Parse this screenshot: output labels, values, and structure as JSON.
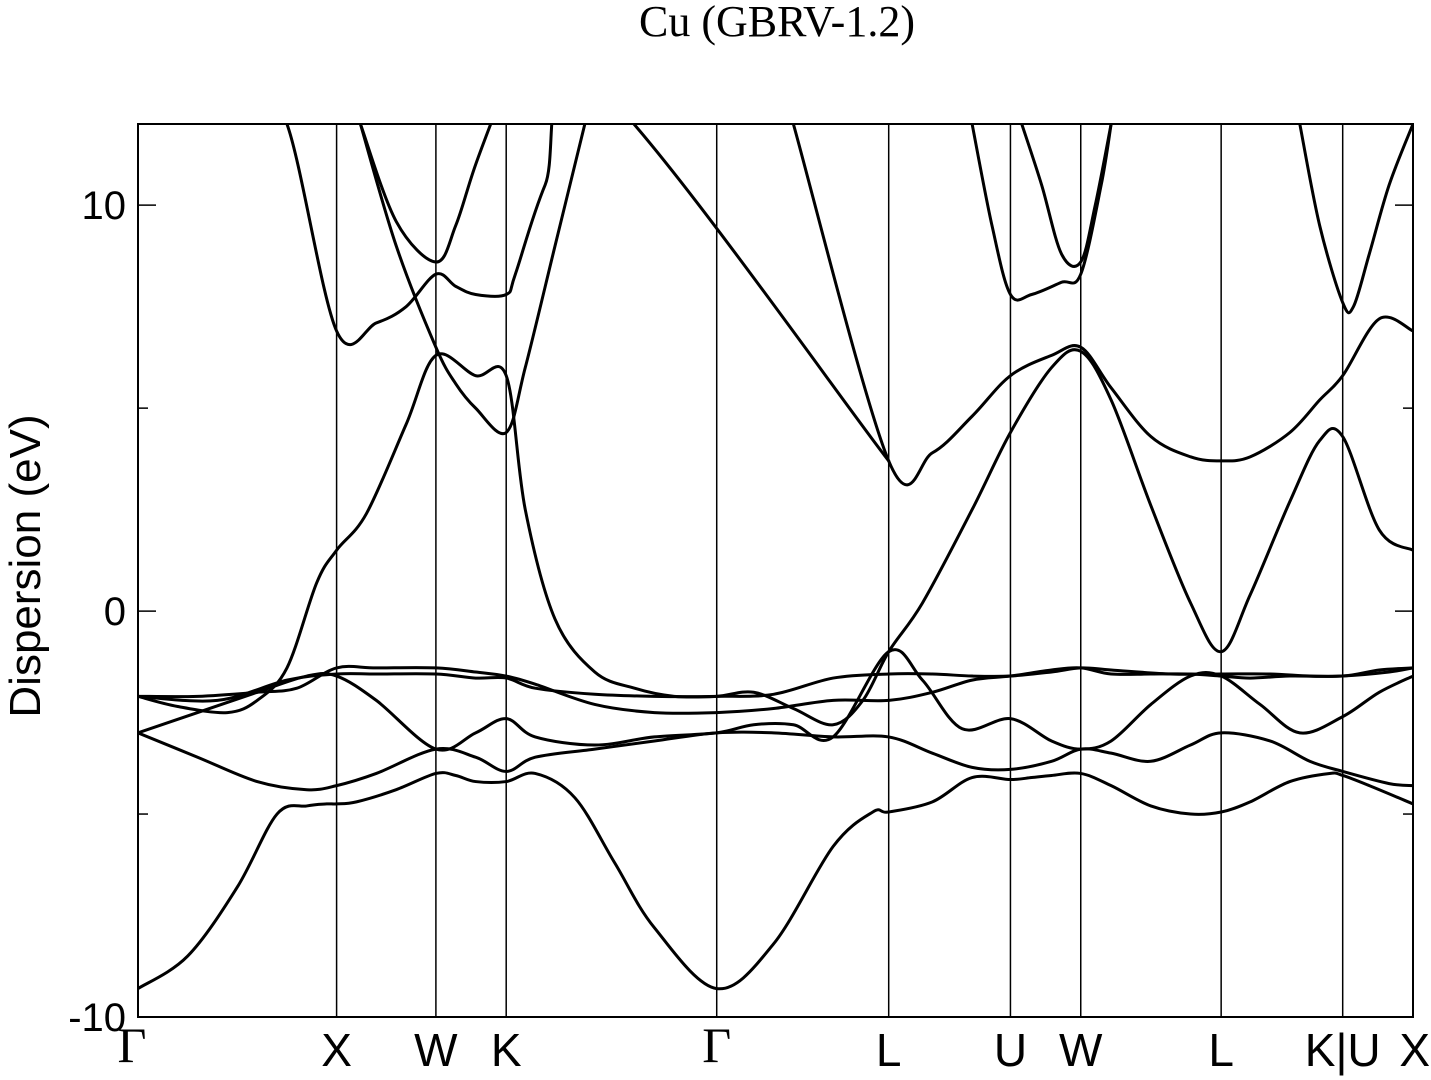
{
  "chart_data": {
    "type": "line",
    "title": "Cu (GBRV-1.2)",
    "xlabel": "",
    "ylabel": "Dispersion (eV)",
    "ylim": [
      -10,
      12
    ],
    "y_ticks": [
      {
        "value": -10,
        "label": "-10"
      },
      {
        "value": 0,
        "label": "0"
      },
      {
        "value": 10,
        "label": "10"
      }
    ],
    "y_minor_ticks": [
      -5,
      5
    ],
    "grid": false,
    "legend": "none",
    "k_path": [
      {
        "label": "Γ",
        "x": 0.0
      },
      {
        "label": "X",
        "x": 1.0
      },
      {
        "label": "W",
        "x": 1.5
      },
      {
        "label": "K",
        "x": 1.854
      },
      {
        "label": "Γ",
        "x": 2.914
      },
      {
        "label": "L",
        "x": 3.78
      },
      {
        "label": "U",
        "x": 4.393
      },
      {
        "label": "W",
        "x": 4.747
      },
      {
        "label": "L",
        "x": 5.454
      },
      {
        "label": "K|U",
        "x": 6.066
      },
      {
        "label": "X",
        "x": 6.42
      }
    ],
    "xlim": [
      0.0,
      6.42
    ],
    "series": [
      {
        "x": [
          0.0,
          0.25,
          0.5,
          0.7,
          0.85,
          0.95,
          1.0,
          1.1,
          1.3,
          1.5,
          1.6,
          1.7,
          1.854,
          2.0,
          2.2,
          2.4,
          2.6,
          2.914,
          3.2,
          3.5,
          3.7,
          3.78,
          4.0,
          4.2,
          4.393,
          4.5,
          4.6,
          4.747,
          4.9,
          5.1,
          5.3,
          5.454,
          5.6,
          5.8,
          6.0,
          6.066,
          6.2,
          6.42
        ],
        "y": [
          -9.3,
          -8.5,
          -6.8,
          -5.0,
          -4.8,
          -4.75,
          -4.75,
          -4.7,
          -4.4,
          -4.0,
          -4.05,
          -4.2,
          -4.2,
          -4.0,
          -4.6,
          -6.2,
          -7.8,
          -9.3,
          -8.2,
          -5.8,
          -4.95,
          -4.95,
          -4.7,
          -4.1,
          -4.15,
          -4.1,
          -4.05,
          -4.0,
          -4.3,
          -4.8,
          -5.0,
          -4.95,
          -4.7,
          -4.2,
          -4.0,
          -4.05,
          -4.3,
          -4.75
        ]
      },
      {
        "x": [
          0.0,
          0.3,
          0.6,
          0.85,
          1.0,
          1.2,
          1.5,
          1.7,
          1.854,
          2.0,
          2.3,
          2.6,
          2.914,
          3.2,
          3.5,
          3.78,
          4.0,
          4.2,
          4.393,
          4.6,
          4.747,
          4.9,
          5.1,
          5.3,
          5.454,
          5.7,
          5.9,
          6.066,
          6.3,
          6.42
        ],
        "y": [
          -3.0,
          -3.6,
          -4.2,
          -4.4,
          -4.3,
          -4.0,
          -3.4,
          -3.6,
          -3.95,
          -3.6,
          -3.4,
          -3.2,
          -3.0,
          -3.0,
          -3.1,
          -3.1,
          -3.5,
          -3.85,
          -3.9,
          -3.7,
          -3.4,
          -3.5,
          -3.7,
          -3.3,
          -3.0,
          -3.2,
          -3.7,
          -3.95,
          -4.25,
          -4.3
        ]
      },
      {
        "x": [
          0.0,
          0.3,
          0.6,
          0.85,
          1.0,
          1.2,
          1.5,
          1.7,
          1.854,
          2.0,
          2.3,
          2.6,
          2.914,
          3.1,
          3.3,
          3.5,
          3.78,
          3.95,
          4.15,
          4.393,
          4.6,
          4.747,
          4.9,
          5.1,
          5.3,
          5.454,
          5.65,
          5.85,
          6.066,
          6.25,
          6.42
        ],
        "y": [
          -3.0,
          -2.5,
          -2.0,
          -1.6,
          -1.6,
          -2.2,
          -3.4,
          -3.0,
          -2.65,
          -3.1,
          -3.3,
          -3.1,
          -3.0,
          -2.8,
          -2.8,
          -3.1,
          -1.0,
          -1.7,
          -2.9,
          -2.65,
          -3.2,
          -3.4,
          -3.2,
          -2.3,
          -1.6,
          -1.6,
          -2.3,
          -3.0,
          -2.6,
          -2.0,
          -1.6
        ]
      },
      {
        "x": [
          0.0,
          0.4,
          0.75,
          1.0,
          1.2,
          1.5,
          1.7,
          1.854,
          2.0,
          2.3,
          2.6,
          2.914,
          3.2,
          3.5,
          3.78,
          4.0,
          4.2,
          4.393,
          4.6,
          4.747,
          4.9,
          5.2,
          5.454,
          5.7,
          5.9,
          6.066,
          6.3,
          6.42
        ],
        "y": [
          -2.1,
          -2.2,
          -1.7,
          -1.55,
          -1.55,
          -1.55,
          -1.65,
          -1.65,
          -1.9,
          -2.05,
          -2.1,
          -2.1,
          -2.05,
          -1.65,
          -1.55,
          -1.55,
          -1.6,
          -1.6,
          -1.5,
          -1.4,
          -1.45,
          -1.55,
          -1.55,
          -1.55,
          -1.6,
          -1.6,
          -1.5,
          -1.4
        ]
      },
      {
        "x": [
          0.0,
          0.3,
          0.6,
          0.8,
          1.0,
          1.2,
          1.5,
          1.7,
          1.854,
          2.0,
          2.3,
          2.6,
          2.914,
          3.2,
          3.5,
          3.78,
          4.0,
          4.2,
          4.393,
          4.6,
          4.747,
          4.9,
          5.1,
          5.3,
          5.454,
          5.6,
          5.8,
          6.066,
          6.25,
          6.42
        ],
        "y": [
          -2.1,
          -2.1,
          -2.0,
          -1.9,
          -1.4,
          -1.4,
          -1.4,
          -1.5,
          -1.6,
          -1.8,
          -2.3,
          -2.5,
          -2.5,
          -2.4,
          -2.2,
          -2.2,
          -2.0,
          -1.7,
          -1.6,
          -1.45,
          -1.4,
          -1.55,
          -1.55,
          -1.55,
          -1.6,
          -1.65,
          -1.6,
          -1.6,
          -1.45,
          -1.4
        ]
      },
      {
        "x": [
          0.0,
          0.2,
          0.45,
          0.6,
          0.75,
          0.9,
          1.0,
          1.15,
          1.35,
          1.5,
          1.7,
          1.854,
          1.95,
          2.1,
          2.3,
          2.5,
          2.7,
          2.914,
          3.1,
          3.3,
          3.5,
          3.65,
          3.78,
          3.95,
          4.2,
          4.393,
          4.6,
          4.747,
          4.9,
          5.1,
          5.3,
          5.454,
          5.6,
          5.8,
          5.95,
          6.066,
          6.25,
          6.42
        ],
        "y": [
          -2.1,
          -2.35,
          -2.5,
          -2.2,
          -1.4,
          0.7,
          1.5,
          2.4,
          4.6,
          6.3,
          5.8,
          5.8,
          2.5,
          -0.2,
          -1.5,
          -1.9,
          -2.1,
          -2.1,
          -2.0,
          -2.4,
          -2.8,
          -2.2,
          -1.0,
          0.2,
          2.5,
          4.4,
          6.0,
          6.4,
          5.2,
          2.6,
          0.2,
          -1.0,
          0.4,
          2.7,
          4.2,
          4.3,
          2.0,
          1.5
        ]
      },
      {
        "x": [
          0.0,
          0.3,
          0.55,
          0.75,
          1.0,
          1.2,
          1.35,
          1.5,
          1.6,
          1.7,
          1.854,
          1.9,
          2.05,
          2.3,
          3.78,
          3.6,
          3.45,
          3.3,
          3.78,
          4.0,
          4.2,
          4.393,
          4.6,
          4.747,
          4.9,
          5.1,
          5.3,
          5.454,
          5.6,
          5.8,
          5.95,
          6.066,
          6.25,
          6.42
        ],
        "y": [
          13.0,
          13.0,
          13.0,
          12.0,
          6.9,
          7.1,
          7.5,
          8.3,
          8.0,
          7.8,
          7.8,
          8.3,
          10.5,
          13.0,
          3.7,
          5.5,
          8.5,
          12.0,
          3.7,
          3.9,
          4.8,
          5.8,
          6.3,
          6.5,
          5.5,
          4.3,
          3.8,
          3.7,
          3.8,
          4.4,
          5.2,
          5.8,
          7.2,
          6.9
        ]
      },
      {
        "x": [
          0.0,
          0.2,
          0.4,
          0.6,
          0.75
        ],
        "y": [
          13.0,
          13.0,
          13.0,
          13.0,
          12.0
        ]
      },
      {
        "x": [
          1.12,
          1.3,
          1.5,
          1.6,
          1.7,
          1.854,
          1.95,
          2.1,
          2.25
        ],
        "y": [
          12.0,
          9.0,
          6.5,
          5.6,
          5.0,
          4.4,
          6.0,
          9.0,
          12.0
        ]
      },
      {
        "x": [
          1.12,
          1.3,
          1.5,
          1.6,
          1.7,
          1.854
        ],
        "y": [
          12.0,
          9.6,
          8.6,
          9.5,
          11.0,
          13.0
        ]
      },
      {
        "x": [
          4.2,
          4.3,
          4.393,
          4.5,
          4.65,
          4.747,
          4.85,
          4.9
        ],
        "y": [
          12.0,
          9.5,
          7.8,
          7.8,
          8.1,
          8.3,
          10.5,
          12.0
        ]
      },
      {
        "x": [
          4.45,
          4.55,
          4.65,
          4.747,
          4.82,
          4.9
        ],
        "y": [
          12.0,
          10.5,
          8.8,
          8.6,
          10.0,
          12.0
        ]
      },
      {
        "x": [
          5.85,
          5.95,
          6.066,
          6.12,
          6.2,
          6.3,
          6.42
        ],
        "y": [
          12.0,
          9.5,
          7.6,
          7.5,
          8.8,
          10.5,
          12.0
        ]
      }
    ]
  }
}
